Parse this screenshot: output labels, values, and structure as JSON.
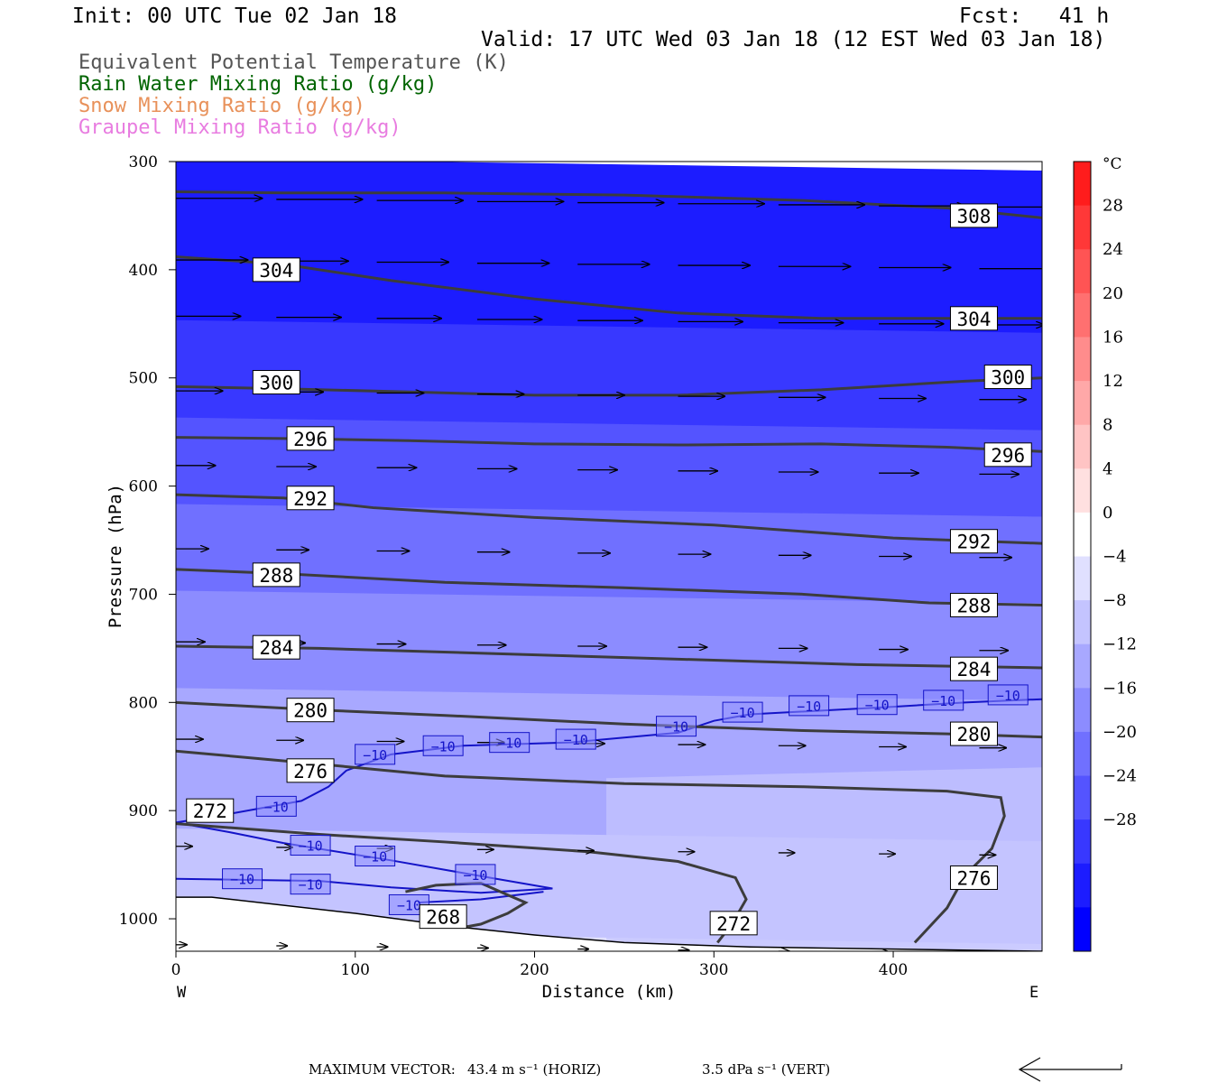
{
  "header": {
    "init": "Init: 00 UTC Tue 02 Jan 18",
    "fcst": "Fcst:   41 h",
    "valid": "Valid: 17 UTC Wed 03 Jan 18 (12 EST Wed 03 Jan 18)"
  },
  "legend": [
    {
      "text": "Equivalent Potential Temperature (K)",
      "color": "#555555"
    },
    {
      "text": "Rain Water Mixing Ratio (g/kg)",
      "color": "#006400"
    },
    {
      "text": "Snow Mixing Ratio (g/kg)",
      "color": "#e8915a"
    },
    {
      "text": "Graupel Mixing Ratio (g/kg)",
      "color": "#e87ce0"
    }
  ],
  "footer": {
    "max_label": "MAXIMUM VECTOR:",
    "horiz": "43.4 m s⁻¹ (HORIZ)",
    "vert": "3.5 dPa s⁻¹ (VERT)"
  },
  "chart_data": {
    "type": "heatmap",
    "xlabel": "Distance (km)",
    "ylabel": "Pressure (hPa)",
    "xlim": [
      0,
      483
    ],
    "ylim": [
      1030,
      300
    ],
    "x_ticks": [
      0,
      100,
      200,
      300,
      400
    ],
    "y_ticks": [
      300,
      400,
      500,
      600,
      700,
      800,
      900,
      1000
    ],
    "x_end_labels": {
      "left": "W",
      "right": "E"
    },
    "colorbar": {
      "unit": "°C",
      "labels": [
        28,
        24,
        20,
        16,
        12,
        8,
        4,
        0,
        -4,
        -8,
        -12,
        -16,
        -20,
        -24,
        -28
      ],
      "colors": [
        "#ff1c1c",
        "#ff3838",
        "#ff5454",
        "#ff7070",
        "#ff8c8c",
        "#ffa8a8",
        "#ffc4c4",
        "#ffe0e0",
        "#ffffff",
        "#e0e0ff",
        "#c4c4ff",
        "#a8a8ff",
        "#8c8cff",
        "#7070ff",
        "#5454ff",
        "#3838ff",
        "#1c1cff",
        "#0000ff"
      ]
    },
    "theta_e_contours": [
      {
        "value": 308,
        "points": [
          [
            0,
            328
          ],
          [
            60,
            329
          ],
          [
            150,
            329
          ],
          [
            250,
            331
          ],
          [
            350,
            336
          ],
          [
            430,
            343
          ],
          [
            483,
            352
          ]
        ]
      },
      {
        "value": 304,
        "points": [
          [
            0,
            388
          ],
          [
            60,
            395
          ],
          [
            120,
            410
          ],
          [
            200,
            427
          ],
          [
            280,
            440
          ],
          [
            360,
            445
          ],
          [
            483,
            445
          ]
        ]
      },
      {
        "value": 300,
        "points": [
          [
            0,
            508
          ],
          [
            60,
            510
          ],
          [
            130,
            513
          ],
          [
            200,
            516
          ],
          [
            280,
            516
          ],
          [
            360,
            511
          ],
          [
            440,
            503
          ],
          [
            483,
            500
          ]
        ]
      },
      {
        "value": 296,
        "points": [
          [
            0,
            555
          ],
          [
            60,
            556
          ],
          [
            130,
            558
          ],
          [
            200,
            561
          ],
          [
            280,
            562
          ],
          [
            360,
            561
          ],
          [
            430,
            564
          ],
          [
            483,
            568
          ]
        ]
      },
      {
        "value": 292,
        "points": [
          [
            0,
            608
          ],
          [
            60,
            611
          ],
          [
            110,
            620
          ],
          [
            200,
            629
          ],
          [
            300,
            636
          ],
          [
            400,
            648
          ],
          [
            483,
            653
          ]
        ]
      },
      {
        "value": 288,
        "points": [
          [
            0,
            677
          ],
          [
            60,
            681
          ],
          [
            150,
            689
          ],
          [
            250,
            694
          ],
          [
            350,
            700
          ],
          [
            420,
            708
          ],
          [
            483,
            710
          ]
        ]
      },
      {
        "value": 284,
        "points": [
          [
            0,
            748
          ],
          [
            80,
            750
          ],
          [
            180,
            755
          ],
          [
            280,
            760
          ],
          [
            380,
            765
          ],
          [
            483,
            768
          ]
        ]
      },
      {
        "value": 280,
        "points": [
          [
            0,
            800
          ],
          [
            80,
            807
          ],
          [
            150,
            812
          ],
          [
            250,
            820
          ],
          [
            350,
            826
          ],
          [
            430,
            829
          ],
          [
            483,
            832
          ]
        ]
      },
      {
        "value": 276,
        "points": [
          [
            0,
            845
          ],
          [
            80,
            857
          ],
          [
            150,
            868
          ],
          [
            250,
            875
          ],
          [
            350,
            878
          ],
          [
            430,
            882
          ],
          [
            460,
            888
          ],
          [
            462,
            905
          ],
          [
            455,
            935
          ],
          [
            440,
            960
          ],
          [
            430,
            990
          ],
          [
            412,
            1022
          ]
        ]
      },
      {
        "value": 272,
        "points": [
          [
            0,
            912
          ],
          [
            80,
            922
          ],
          [
            150,
            929
          ],
          [
            230,
            938
          ],
          [
            280,
            947
          ],
          [
            312,
            962
          ],
          [
            318,
            982
          ],
          [
            310,
            1005
          ],
          [
            302,
            1022
          ]
        ]
      },
      {
        "value": 268,
        "points": [
          [
            128,
            975
          ],
          [
            145,
            969
          ],
          [
            170,
            967
          ],
          [
            185,
            978
          ],
          [
            195,
            985
          ],
          [
            185,
            995
          ],
          [
            170,
            1005
          ],
          [
            160,
            1008
          ]
        ]
      }
    ],
    "theta_e_labels": [
      {
        "value": 308,
        "x": 445,
        "p": 350
      },
      {
        "value": 304,
        "x": 56,
        "p": 400
      },
      {
        "value": 304,
        "x": 445,
        "p": 445
      },
      {
        "value": 300,
        "x": 56,
        "p": 504
      },
      {
        "value": 300,
        "x": 464,
        "p": 499
      },
      {
        "value": 296,
        "x": 75,
        "p": 556
      },
      {
        "value": 296,
        "x": 464,
        "p": 571
      },
      {
        "value": 292,
        "x": 75,
        "p": 611
      },
      {
        "value": 292,
        "x": 445,
        "p": 651
      },
      {
        "value": 288,
        "x": 56,
        "p": 682
      },
      {
        "value": 288,
        "x": 445,
        "p": 710
      },
      {
        "value": 284,
        "x": 56,
        "p": 749
      },
      {
        "value": 284,
        "x": 445,
        "p": 769
      },
      {
        "value": 280,
        "x": 75,
        "p": 807
      },
      {
        "value": 280,
        "x": 445,
        "p": 829
      },
      {
        "value": 276,
        "x": 75,
        "p": 863
      },
      {
        "value": 276,
        "x": 445,
        "p": 962
      },
      {
        "value": 272,
        "x": 19,
        "p": 900
      },
      {
        "value": 272,
        "x": 311,
        "p": 1004
      },
      {
        "value": 268,
        "x": 149,
        "p": 998
      }
    ],
    "isotherm_minus10": [
      [
        [
          0,
          911
        ],
        [
          30,
          903
        ],
        [
          70,
          891
        ],
        [
          85,
          878
        ],
        [
          95,
          863
        ],
        [
          120,
          848
        ],
        [
          160,
          840
        ],
        [
          220,
          837
        ],
        [
          280,
          828
        ],
        [
          300,
          817
        ],
        [
          320,
          811
        ],
        [
          400,
          804
        ],
        [
          440,
          800
        ],
        [
          483,
          797
        ]
      ],
      [
        [
          0,
          963
        ],
        [
          80,
          965
        ],
        [
          120,
          971
        ],
        [
          170,
          976
        ],
        [
          210,
          972
        ],
        [
          175,
          962
        ],
        [
          120,
          946
        ],
        [
          60,
          930
        ],
        [
          30,
          920
        ],
        [
          0,
          911
        ]
      ],
      [
        [
          205,
          975
        ],
        [
          170,
          982
        ],
        [
          135,
          985
        ]
      ]
    ],
    "isotherm_labels": [
      {
        "x": 56,
        "p": 896
      },
      {
        "x": 111,
        "p": 848
      },
      {
        "x": 149,
        "p": 840
      },
      {
        "x": 186,
        "p": 837
      },
      {
        "x": 223,
        "p": 834
      },
      {
        "x": 279,
        "p": 822
      },
      {
        "x": 316,
        "p": 809
      },
      {
        "x": 353,
        "p": 803
      },
      {
        "x": 391,
        "p": 802
      },
      {
        "x": 428,
        "p": 798
      },
      {
        "x": 464,
        "p": 793
      },
      {
        "x": 37,
        "p": 963
      },
      {
        "x": 75,
        "p": 932
      },
      {
        "x": 75,
        "p": 968
      },
      {
        "x": 111,
        "p": 942
      },
      {
        "x": 130,
        "p": 987
      },
      {
        "x": 167,
        "p": 959
      }
    ],
    "wind_vector_rows": [
      {
        "p": 338,
        "length_km": 48
      },
      {
        "p": 395,
        "length_km": 40
      },
      {
        "p": 447,
        "length_km": 36
      },
      {
        "p": 516,
        "length_km": 26
      },
      {
        "p": 585,
        "length_km": 22
      },
      {
        "p": 662,
        "length_km": 18
      },
      {
        "p": 748,
        "length_km": 16
      },
      {
        "p": 838,
        "length_km": 15
      },
      {
        "p": 937,
        "length_km": 9
      },
      {
        "p": 1028,
        "length_km": 6
      }
    ],
    "temperature_bands": [
      {
        "p": 300,
        "temp": -32
      },
      {
        "p": 390,
        "temp": -30
      },
      {
        "p": 450,
        "temp": -28
      },
      {
        "p": 500,
        "temp": -26
      },
      {
        "p": 540,
        "temp": -24
      },
      {
        "p": 580,
        "temp": -22
      },
      {
        "p": 620,
        "temp": -20
      },
      {
        "p": 660,
        "temp": -18
      },
      {
        "p": 700,
        "temp": -16
      },
      {
        "p": 740,
        "temp": -14
      },
      {
        "p": 790,
        "temp": -12
      },
      {
        "p": 850,
        "temp": -10
      },
      {
        "p": 920,
        "temp": -8
      },
      {
        "p": 980,
        "temp": -6
      },
      {
        "p": 1015,
        "temp": -4
      }
    ]
  }
}
